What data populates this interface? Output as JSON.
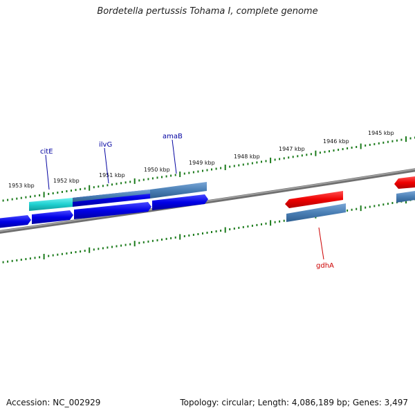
{
  "title": "Bordetella pertussis Tohama I, complete genome",
  "accession_label": "Accession: NC_002929",
  "summary_label": "Topology: circular; Length: 4,086,189 bp; Genes: 3,497",
  "scale_ticks": [
    "1953 kbp",
    "1952 kbp",
    "1951 kbp",
    "1950 kbp",
    "1949 kbp",
    "1948 kbp",
    "1947 kbp",
    "1946 kbp",
    "1945 kbp"
  ],
  "gene_labels": [
    {
      "name": "citE",
      "color": "#0000a0"
    },
    {
      "name": "ilvG",
      "color": "#0000a0"
    },
    {
      "name": "amaB",
      "color": "#0000a0"
    },
    {
      "name": "gdhA",
      "color": "#cc0000"
    }
  ],
  "colors": {
    "backbone": "#808080",
    "ticks": "#1a7a1a",
    "gene_blue": "#0000e6",
    "gene_steel": "#4a7fb5",
    "gene_cyan": "#20d0d0",
    "gene_red": "#ee0000"
  }
}
